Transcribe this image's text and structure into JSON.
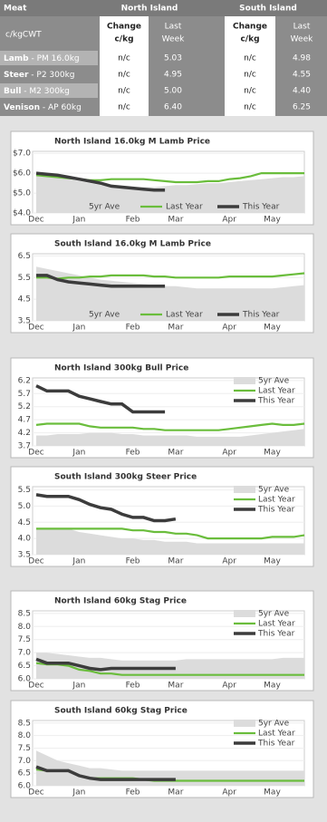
{
  "table": {
    "header": [
      "Meat",
      "North Island",
      "South Island"
    ],
    "unit": "c/kgCWT",
    "columns": [
      [
        "Change",
        "c/kg"
      ],
      [
        "Last",
        "Week"
      ],
      [
        "Change",
        "c/kg"
      ],
      [
        "Last",
        "Week"
      ]
    ],
    "rows": [
      {
        "meat": "Lamb",
        "spec": " - PM 16.0kg",
        "cells": [
          "n/c",
          "5.03",
          "n/c",
          "4.98"
        ]
      },
      {
        "meat": "Steer",
        "spec": " - P2 300kg",
        "cells": [
          "n/c",
          "4.95",
          "n/c",
          "4.55"
        ]
      },
      {
        "meat": "Bull",
        "spec": " - M2 300kg",
        "cells": [
          "n/c",
          "5.00",
          "n/c",
          "4.40"
        ]
      },
      {
        "meat": "Venison",
        "spec": " - AP 60kg",
        "cells": [
          "n/c",
          "6.40",
          "n/c",
          "6.25"
        ]
      }
    ]
  },
  "chart_data": [
    {
      "type": "line",
      "title": "North Island 16.0kg M Lamb Price",
      "legend": "bottom",
      "grid": true,
      "categories": [
        "Dec",
        null,
        null,
        null,
        "Jan",
        null,
        null,
        null,
        null,
        "Feb",
        null,
        null,
        null,
        "Mar",
        null,
        null,
        null,
        null,
        "Apr",
        null,
        null,
        null,
        "May",
        null,
        null,
        null
      ],
      "ylim": [
        4,
        7.1
      ],
      "yticks": [
        {
          "value": 4,
          "label": "$4.0"
        },
        {
          "value": 5,
          "label": "$5.0"
        },
        {
          "value": 6,
          "label": "$6.0"
        },
        {
          "value": 7,
          "label": "$7.0"
        }
      ],
      "series": [
        {
          "name": "5yr Ave",
          "color": "#dcdcdc",
          "fill": true,
          "values": [
            6.0,
            5.9,
            5.8,
            5.7,
            5.6,
            5.5,
            5.4,
            5.35,
            5.3,
            5.3,
            5.3,
            5.3,
            5.35,
            5.4,
            5.4,
            5.45,
            5.5,
            5.5,
            5.55,
            5.6,
            5.65,
            5.7,
            5.75,
            5.8,
            5.8,
            5.85
          ]
        },
        {
          "name": "Last Year",
          "color": "#6abd3c",
          "values": [
            5.9,
            5.85,
            5.8,
            5.75,
            5.7,
            5.65,
            5.65,
            5.7,
            5.7,
            5.7,
            5.7,
            5.65,
            5.6,
            5.55,
            5.55,
            5.55,
            5.6,
            5.6,
            5.7,
            5.75,
            5.85,
            6.0,
            6.0,
            6.0,
            6.0,
            6.0
          ]
        },
        {
          "name": "This Year",
          "color": "#3c3c3c",
          "values": [
            6.0,
            5.95,
            5.9,
            5.8,
            5.7,
            5.6,
            5.5,
            5.35,
            5.3,
            5.25,
            5.2,
            5.15,
            5.15,
            null,
            null,
            null,
            null,
            null,
            null,
            null,
            null,
            null,
            null,
            null,
            null,
            null
          ]
        }
      ]
    },
    {
      "type": "line",
      "title": "South Island 16.0kg M Lamb Price",
      "legend": "bottom",
      "grid": true,
      "categories": [
        "Dec",
        null,
        null,
        null,
        "Jan",
        null,
        null,
        null,
        null,
        "Feb",
        null,
        null,
        null,
        "Mar",
        null,
        null,
        null,
        null,
        "Apr",
        null,
        null,
        null,
        "May",
        null,
        null,
        null
      ],
      "ylim": [
        3.5,
        6.6
      ],
      "yticks": [
        3.5,
        4.5,
        5.5,
        6.5
      ],
      "series": [
        {
          "name": "5yr Ave",
          "color": "#dcdcdc",
          "fill": true,
          "values": [
            6.0,
            5.9,
            5.8,
            5.7,
            5.6,
            5.5,
            5.4,
            5.35,
            5.3,
            5.25,
            5.2,
            5.15,
            5.1,
            5.1,
            5.05,
            5.0,
            5.0,
            5.0,
            5.0,
            5.0,
            5.0,
            5.0,
            5.0,
            5.05,
            5.1,
            5.15
          ]
        },
        {
          "name": "Last Year",
          "color": "#6abd3c",
          "values": [
            5.5,
            5.5,
            5.45,
            5.5,
            5.5,
            5.55,
            5.55,
            5.6,
            5.6,
            5.6,
            5.6,
            5.55,
            5.55,
            5.5,
            5.5,
            5.5,
            5.5,
            5.5,
            5.55,
            5.55,
            5.55,
            5.55,
            5.55,
            5.6,
            5.65,
            5.7
          ]
        },
        {
          "name": "This Year",
          "color": "#3c3c3c",
          "values": [
            5.6,
            5.6,
            5.4,
            5.3,
            5.25,
            5.2,
            5.15,
            5.1,
            5.1,
            5.1,
            5.1,
            5.1,
            5.1,
            null,
            null,
            null,
            null,
            null,
            null,
            null,
            null,
            null,
            null,
            null,
            null,
            null
          ]
        }
      ]
    },
    {
      "type": "line",
      "title": "North Island 300kg Bull Price",
      "legend": "top-right",
      "grid": true,
      "categories": [
        "Dec",
        null,
        null,
        null,
        "Jan",
        null,
        null,
        null,
        null,
        "Feb",
        null,
        null,
        null,
        "Mar",
        null,
        null,
        null,
        null,
        "Apr",
        null,
        null,
        null,
        "May",
        null,
        null,
        null
      ],
      "ylim": [
        3.7,
        6.3
      ],
      "yticks": [
        3.7,
        4.2,
        4.7,
        5.2,
        5.7,
        6.2
      ],
      "series": [
        {
          "name": "5yr Ave",
          "color": "#dcdcdc",
          "fill": true,
          "values": [
            4.1,
            4.1,
            4.15,
            4.15,
            4.15,
            4.2,
            4.2,
            4.2,
            4.15,
            4.15,
            4.1,
            4.1,
            4.1,
            4.1,
            4.1,
            4.05,
            4.05,
            4.05,
            4.05,
            4.05,
            4.1,
            4.15,
            4.2,
            4.25,
            4.3,
            4.35
          ]
        },
        {
          "name": "Last Year",
          "color": "#6abd3c",
          "values": [
            4.5,
            4.55,
            4.55,
            4.55,
            4.55,
            4.45,
            4.4,
            4.4,
            4.4,
            4.4,
            4.35,
            4.35,
            4.3,
            4.3,
            4.3,
            4.3,
            4.3,
            4.3,
            4.35,
            4.4,
            4.45,
            4.5,
            4.55,
            4.5,
            4.5,
            4.55
          ]
        },
        {
          "name": "This Year",
          "color": "#3c3c3c",
          "values": [
            6.0,
            5.8,
            5.8,
            5.8,
            5.6,
            5.5,
            5.4,
            5.3,
            5.3,
            5.0,
            5.0,
            5.0,
            5.0,
            null,
            null,
            null,
            null,
            null,
            null,
            null,
            null,
            null,
            null,
            null,
            null,
            null
          ]
        }
      ]
    },
    {
      "type": "line",
      "title": "South Island 300kg Steer Price",
      "legend": "top-right",
      "grid": true,
      "categories": [
        "Dec",
        null,
        null,
        null,
        "Jan",
        null,
        null,
        null,
        null,
        "Feb",
        null,
        null,
        null,
        "Mar",
        null,
        null,
        null,
        null,
        "Apr",
        null,
        null,
        null,
        "May",
        null,
        null,
        null
      ],
      "ylim": [
        3.5,
        5.6
      ],
      "yticks": [
        3.5,
        {
          "value": 4,
          "label": "4.0"
        },
        4.5,
        {
          "value": 5,
          "label": "5.0"
        },
        5.5
      ],
      "series": [
        {
          "name": "5yr Ave",
          "color": "#dcdcdc",
          "fill": true,
          "values": [
            4.3,
            4.3,
            4.3,
            4.3,
            4.2,
            4.15,
            4.1,
            4.05,
            4.0,
            4.0,
            3.95,
            3.95,
            3.9,
            3.9,
            3.9,
            3.85,
            3.85,
            3.85,
            3.85,
            3.85,
            3.85,
            3.85,
            3.85,
            3.85,
            3.85,
            3.85
          ]
        },
        {
          "name": "Last Year",
          "color": "#6abd3c",
          "values": [
            4.3,
            4.3,
            4.3,
            4.3,
            4.3,
            4.3,
            4.3,
            4.3,
            4.3,
            4.25,
            4.25,
            4.2,
            4.2,
            4.15,
            4.15,
            4.1,
            4.0,
            4.0,
            4.0,
            4.0,
            4.0,
            4.0,
            4.05,
            4.05,
            4.05,
            4.1
          ]
        },
        {
          "name": "This Year",
          "color": "#3c3c3c",
          "values": [
            5.35,
            5.3,
            5.3,
            5.3,
            5.2,
            5.05,
            4.95,
            4.9,
            4.75,
            4.65,
            4.65,
            4.55,
            4.55,
            4.6,
            null,
            null,
            null,
            null,
            null,
            null,
            null,
            null,
            null,
            null,
            null,
            null
          ]
        }
      ]
    },
    {
      "type": "line",
      "title": "North Island 60kg Stag Price",
      "legend": "top-right",
      "grid": true,
      "categories": [
        "Dec",
        null,
        null,
        null,
        "Jan",
        null,
        null,
        null,
        null,
        "Feb",
        null,
        null,
        null,
        "Mar",
        null,
        null,
        null,
        null,
        "Apr",
        null,
        null,
        null,
        "May",
        null,
        null,
        null
      ],
      "ylim": [
        6,
        8.6
      ],
      "yticks": [
        {
          "value": 6,
          "label": "6.0"
        },
        6.5,
        {
          "value": 7,
          "label": "7.0"
        },
        7.5,
        {
          "value": 8,
          "label": "8.0"
        },
        8.5
      ],
      "series": [
        {
          "name": "5yr Ave",
          "color": "#dcdcdc",
          "fill": true,
          "values": [
            7.0,
            7.0,
            6.95,
            6.9,
            6.85,
            6.8,
            6.8,
            6.75,
            6.7,
            6.7,
            6.7,
            6.7,
            6.7,
            6.7,
            6.75,
            6.75,
            6.75,
            6.75,
            6.75,
            6.75,
            6.75,
            6.75,
            6.75,
            6.8,
            6.8,
            6.8
          ]
        },
        {
          "name": "Last Year",
          "color": "#6abd3c",
          "values": [
            6.6,
            6.55,
            6.55,
            6.5,
            6.35,
            6.3,
            6.2,
            6.2,
            6.15,
            6.15,
            6.15,
            6.15,
            6.15,
            6.15,
            6.15,
            6.15,
            6.15,
            6.15,
            6.15,
            6.15,
            6.15,
            6.15,
            6.15,
            6.15,
            6.15,
            6.15
          ]
        },
        {
          "name": "This Year",
          "color": "#3c3c3c",
          "values": [
            6.75,
            6.6,
            6.6,
            6.6,
            6.5,
            6.4,
            6.35,
            6.4,
            6.4,
            6.4,
            6.4,
            6.4,
            6.4,
            6.4,
            null,
            null,
            null,
            null,
            null,
            null,
            null,
            null,
            null,
            null,
            null,
            null
          ]
        }
      ]
    },
    {
      "type": "line",
      "title": "South Island 60kg Stag Price",
      "legend": "top-right",
      "grid": true,
      "categories": [
        "Dec",
        null,
        null,
        null,
        "Jan",
        null,
        null,
        null,
        null,
        "Feb",
        null,
        null,
        null,
        "Mar",
        null,
        null,
        null,
        null,
        "Apr",
        null,
        null,
        null,
        "May",
        null,
        null,
        null
      ],
      "ylim": [
        6,
        8.6
      ],
      "yticks": [
        {
          "value": 6,
          "label": "6.0"
        },
        6.5,
        {
          "value": 7,
          "label": "7.0"
        },
        7.5,
        {
          "value": 8,
          "label": "8.0"
        },
        8.5
      ],
      "series": [
        {
          "name": "5yr Ave",
          "color": "#dcdcdc",
          "fill": true,
          "values": [
            7.4,
            7.2,
            7.0,
            6.9,
            6.8,
            6.7,
            6.7,
            6.65,
            6.6,
            6.6,
            6.6,
            6.6,
            6.6,
            6.6,
            6.6,
            6.6,
            6.6,
            6.6,
            6.6,
            6.6,
            6.6,
            6.6,
            6.6,
            6.6,
            6.6,
            6.6
          ]
        },
        {
          "name": "Last Year",
          "color": "#6abd3c",
          "values": [
            6.65,
            6.6,
            6.6,
            6.6,
            6.4,
            6.3,
            6.3,
            6.3,
            6.3,
            6.3,
            6.25,
            6.2,
            6.2,
            6.2,
            6.2,
            6.2,
            6.2,
            6.2,
            6.2,
            6.2,
            6.2,
            6.2,
            6.2,
            6.2,
            6.2,
            6.2
          ]
        },
        {
          "name": "This Year",
          "color": "#3c3c3c",
          "values": [
            6.75,
            6.6,
            6.6,
            6.6,
            6.4,
            6.3,
            6.25,
            6.25,
            6.25,
            6.25,
            6.25,
            6.25,
            6.25,
            6.25,
            null,
            null,
            null,
            null,
            null,
            null,
            null,
            null,
            null,
            null,
            null,
            null
          ]
        }
      ]
    }
  ]
}
